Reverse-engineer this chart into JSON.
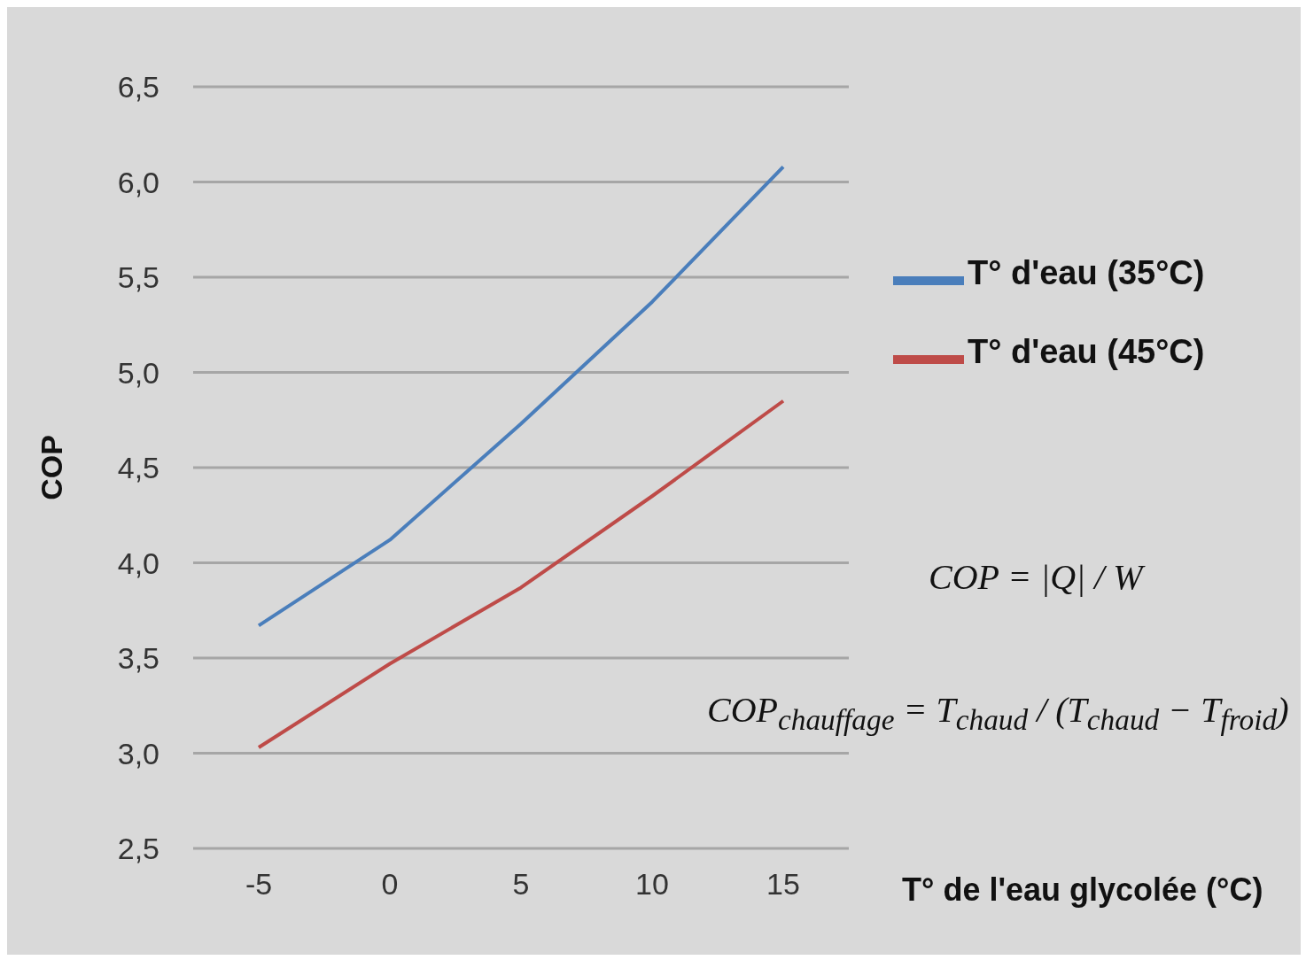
{
  "chart_data": {
    "type": "line",
    "xlabel": "T° de l'eau glycolée (°C)",
    "ylabel": "COP",
    "x": [
      -5,
      0,
      5,
      10,
      15
    ],
    "series": [
      {
        "name": "T° d'eau (35°C)",
        "color": "#4a7ebb",
        "values": [
          3.67,
          4.12,
          4.73,
          5.37,
          6.08
        ]
      },
      {
        "name": "T° d'eau (45°C)",
        "color": "#be4b48",
        "values": [
          3.03,
          3.47,
          3.87,
          4.35,
          4.85
        ]
      }
    ],
    "xlim": [
      -7.5,
      17.5
    ],
    "xticks": [
      -5,
      0,
      5,
      10,
      15
    ],
    "ylim": [
      2.5,
      6.5
    ],
    "yticks": [
      {
        "value": 2.5,
        "label": "2,5"
      },
      {
        "value": 3,
        "label": "3,0"
      },
      {
        "value": 3.5,
        "label": "3,5"
      },
      {
        "value": 4,
        "label": "4,0"
      },
      {
        "value": 4.5,
        "label": "4,5"
      },
      {
        "value": 5,
        "label": "5,0"
      },
      {
        "value": 5.5,
        "label": "5,5"
      },
      {
        "value": 6,
        "label": "6,0"
      },
      {
        "value": 6.5,
        "label": "6,5"
      }
    ],
    "grid": "y",
    "legend": "right",
    "marker": "none",
    "line_style": "solid",
    "annotations": [
      "COP = |Q| / W",
      "COP$_{chauffage}$ = T$_{chaud}$ / (T$_{chaud}$ − T$_{froid}$)"
    ]
  }
}
